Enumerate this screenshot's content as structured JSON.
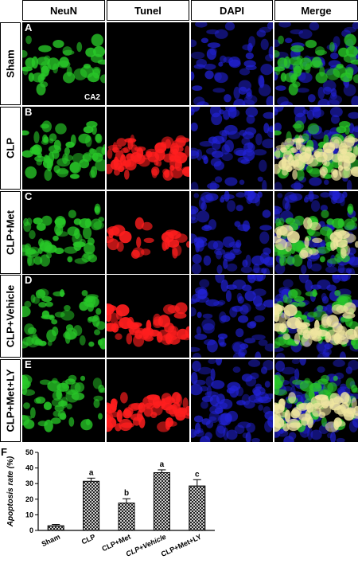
{
  "columns": [
    "NeuN",
    "Tunel",
    "DAPI",
    "Merge"
  ],
  "rows": [
    {
      "letter": "A",
      "label": "Sham",
      "region": "CA2",
      "neun": 0.55,
      "tunel": 0.0,
      "dapi": 0.35
    },
    {
      "letter": "B",
      "label": "CLP",
      "region": "",
      "neun": 0.85,
      "tunel": 0.9,
      "dapi": 0.45
    },
    {
      "letter": "C",
      "label": "CLP+Met",
      "region": "",
      "neun": 0.8,
      "tunel": 0.35,
      "dapi": 0.55
    },
    {
      "letter": "D",
      "label": "CLP+Vehicle",
      "region": "",
      "neun": 0.75,
      "tunel": 0.7,
      "dapi": 0.5
    },
    {
      "letter": "E",
      "label": "CLP+Met+LY",
      "region": "",
      "neun": 0.7,
      "tunel": 0.75,
      "dapi": 0.65
    }
  ],
  "colors": {
    "neun": "#28c828",
    "tunel": "#ff1e1e",
    "dapi": "#2222d8",
    "merge_overlap": "#f0e6a0"
  },
  "chart_data": {
    "panel_letter": "F",
    "type": "bar",
    "categories": [
      "Sham",
      "CLP",
      "CLP+Met",
      "CLP+Vehicle",
      "CLP+Met+LY"
    ],
    "values": [
      3,
      31.5,
      17.5,
      37,
      28.5
    ],
    "errors": [
      0.8,
      2,
      2.8,
      1.8,
      4
    ],
    "significance": [
      "",
      "a",
      "b",
      "a",
      "c"
    ],
    "ylabel": "Apoptosis rate (%)",
    "ylim": [
      0,
      50
    ],
    "yticks": [
      0,
      10,
      20,
      30,
      40,
      50
    ],
    "bar_fill": "crosshatch"
  }
}
